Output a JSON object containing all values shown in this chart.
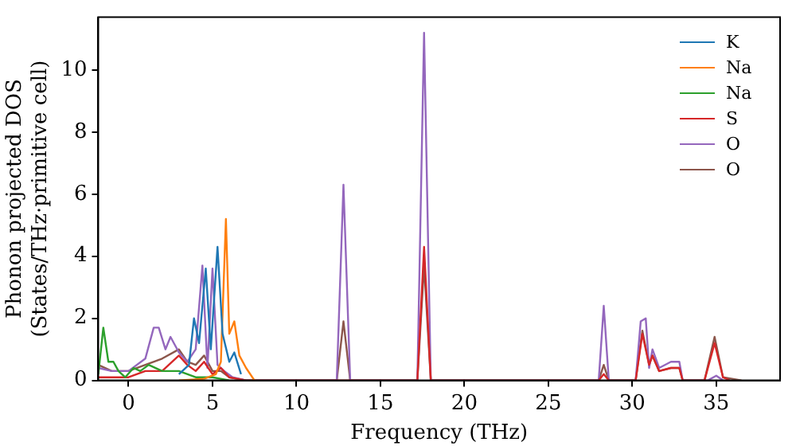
{
  "chart_data": {
    "type": "line",
    "xlabel": "Frequency (THz)",
    "ylabel": "Phonon projected DOS\n(States/THz·primitive cell)",
    "xlim": [
      -1.8,
      38.8
    ],
    "ylim": [
      0,
      11.7
    ],
    "xticks": [
      0,
      5,
      10,
      15,
      20,
      25,
      30,
      35
    ],
    "yticks": [
      0,
      2,
      4,
      6,
      8,
      10
    ],
    "grid": false,
    "legend": "top right",
    "marker": "none",
    "line_style": "solid",
    "series": [
      {
        "name": "K",
        "color": "#1f77b4",
        "x": [
          3,
          3.6,
          3.9,
          4.2,
          4.6,
          4.9,
          5.3,
          5.6,
          6.0,
          6.3,
          6.7
        ],
        "values": [
          0.2,
          0.5,
          2.0,
          1.2,
          3.6,
          1.0,
          4.3,
          1.5,
          0.6,
          0.9,
          0.2
        ]
      },
      {
        "name": "Na",
        "color": "#ff7f0e",
        "x": [
          3,
          4.5,
          5.2,
          5.5,
          5.8,
          6.0,
          6.3,
          6.6,
          7.0,
          7.5
        ],
        "values": [
          0,
          0.05,
          0.2,
          0.6,
          5.2,
          1.5,
          1.9,
          0.8,
          0.4,
          0
        ]
      },
      {
        "name": "Na",
        "color": "#2ca02c",
        "x": [
          -1.8,
          -1.5,
          -1.2,
          -0.9,
          -0.6,
          -0.2,
          0.3,
          0.7,
          1.2,
          2.0,
          3.0,
          4.0,
          5.0,
          6.0
        ],
        "values": [
          0.2,
          1.7,
          0.6,
          0.6,
          0.3,
          0.1,
          0.4,
          0.3,
          0.5,
          0.3,
          0.3,
          0.1,
          0.1,
          0
        ]
      },
      {
        "name": "S",
        "color": "#d62728",
        "x": [
          -1.8,
          0,
          1,
          2,
          3,
          3.5,
          4,
          4.5,
          5,
          5.5,
          6,
          7,
          17.2,
          17.6,
          18,
          28,
          28.3,
          28.6,
          30.2,
          30.6,
          31,
          31.2,
          31.6,
          32.3,
          32.8,
          33.0,
          34.3,
          34.9,
          35.4,
          35.8
        ],
        "values": [
          0.1,
          0.1,
          0.3,
          0.3,
          0.8,
          0.5,
          0.3,
          0.6,
          0.2,
          0.4,
          0.1,
          0,
          0,
          4.3,
          0,
          0,
          0.2,
          0,
          0,
          1.5,
          0.5,
          0.8,
          0.3,
          0.4,
          0.4,
          0,
          0,
          1.2,
          0.1,
          0
        ]
      },
      {
        "name": "O",
        "color": "#9467bd",
        "x": [
          -1.8,
          -1,
          0,
          1,
          1.5,
          1.8,
          2.2,
          2.5,
          3.0,
          3.5,
          4.0,
          4.4,
          4.7,
          5.0,
          5.3,
          5.7,
          6.2,
          7,
          12.4,
          12.8,
          13.2,
          17.2,
          17.6,
          18.0,
          28.0,
          28.3,
          28.6,
          30.2,
          30.5,
          30.8,
          31.0,
          31.2,
          31.6,
          32.3,
          32.8,
          33.0,
          34.5,
          35.0,
          35.4
        ],
        "values": [
          0.4,
          0.3,
          0.3,
          0.7,
          1.7,
          1.7,
          1.0,
          1.4,
          0.9,
          0.6,
          1.0,
          3.7,
          0.4,
          3.6,
          0.5,
          0.3,
          0.1,
          0,
          0,
          6.3,
          0,
          0,
          11.2,
          0,
          0,
          2.4,
          0,
          0,
          1.9,
          2.0,
          0.4,
          1.0,
          0.4,
          0.6,
          0.6,
          0,
          0,
          0.15,
          0
        ]
      },
      {
        "name": "O",
        "color": "#8c564b",
        "x": [
          -1.8,
          -1,
          0,
          1,
          2,
          3,
          3.5,
          4,
          4.5,
          5,
          5.5,
          6,
          7,
          12.4,
          12.8,
          13.2,
          17.2,
          17.6,
          18,
          28,
          28.3,
          28.6,
          30.2,
          30.6,
          31,
          31.2,
          31.6,
          32.3,
          32.8,
          33.0,
          34.3,
          34.9,
          35.4,
          36.5
        ],
        "values": [
          0.5,
          0.3,
          0.3,
          0.5,
          0.7,
          1.0,
          0.6,
          0.5,
          0.8,
          0.3,
          0.3,
          0.1,
          0,
          0,
          1.9,
          0,
          0,
          3.7,
          0,
          0,
          0.5,
          0,
          0,
          1.6,
          0.5,
          0.8,
          0.3,
          0.4,
          0.4,
          0,
          0,
          1.4,
          0.1,
          0
        ]
      }
    ]
  }
}
